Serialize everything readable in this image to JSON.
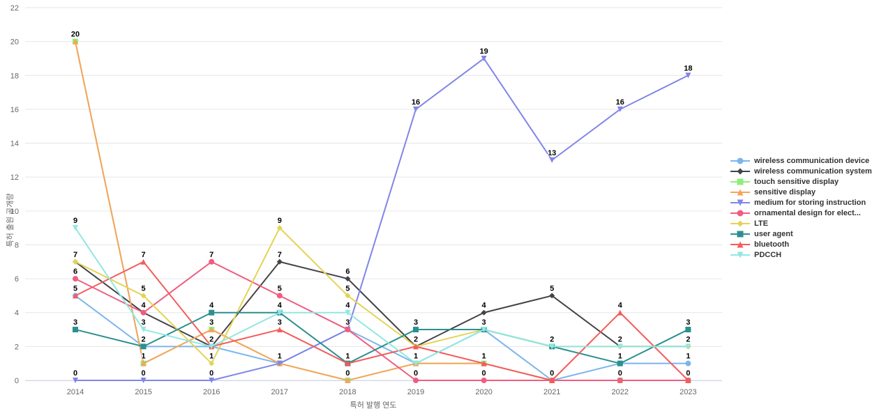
{
  "chart_data": {
    "type": "line",
    "title": "",
    "xlabel": "특허 발행 연도",
    "ylabel": "특허 출원 공개량",
    "categories": [
      "2014",
      "2015",
      "2016",
      "2017",
      "2018",
      "2019",
      "2020",
      "2021",
      "2022",
      "2023"
    ],
    "ylim": [
      0,
      22
    ],
    "ytick_step": 2,
    "grid": "horizontal",
    "legend_position": "right",
    "series": [
      {
        "name": "wireless communication device",
        "color": "#7cb5ec",
        "marker": "circle",
        "values": [
          5,
          2,
          2,
          1,
          3,
          1,
          3,
          0,
          1,
          1
        ]
      },
      {
        "name": "wireless communication system",
        "color": "#434348",
        "marker": "diamond",
        "values": [
          7,
          4,
          2,
          7,
          6,
          2,
          4,
          5,
          2,
          2
        ]
      },
      {
        "name": "touch sensitive display",
        "color": "#90ed7d",
        "marker": "square",
        "values": [
          20,
          1,
          3,
          1,
          0,
          1,
          1,
          0,
          0,
          0
        ]
      },
      {
        "name": "sensitive display",
        "color": "#f7a35c",
        "marker": "triangle",
        "values": [
          20,
          1,
          3,
          1,
          0,
          1,
          1,
          0,
          0,
          0
        ]
      },
      {
        "name": "medium for storing instruction",
        "color": "#8085e9",
        "marker": "triangle-down",
        "values": [
          0,
          0,
          0,
          1,
          3,
          16,
          19,
          13,
          16,
          18
        ]
      },
      {
        "name": "ornamental design for elect...",
        "color": "#f15c80",
        "marker": "circle",
        "values": [
          6,
          4,
          7,
          5,
          3,
          0,
          0,
          0,
          0,
          0
        ]
      },
      {
        "name": "LTE",
        "color": "#e4d354",
        "marker": "diamond",
        "values": [
          7,
          5,
          1,
          9,
          5,
          2,
          3,
          2,
          2,
          2
        ]
      },
      {
        "name": "user agent",
        "color": "#2b908f",
        "marker": "square",
        "values": [
          3,
          2,
          4,
          4,
          1,
          3,
          3,
          2,
          1,
          3
        ]
      },
      {
        "name": "bluetooth",
        "color": "#f45b5b",
        "marker": "triangle",
        "values": [
          5,
          7,
          2,
          3,
          1,
          2,
          1,
          0,
          4,
          0
        ]
      },
      {
        "name": "PDCCH",
        "color": "#91e8e1",
        "marker": "triangle-down",
        "values": [
          9,
          3,
          2,
          4,
          4,
          1,
          3,
          2,
          2,
          2
        ]
      }
    ],
    "colors": {
      "gridline": "#e6e6e6",
      "xaxis_line": "#ccd6eb",
      "tick_label": "#666666",
      "axis_title": "#666666",
      "data_label": "#000000",
      "legend_text": "#333333"
    }
  }
}
